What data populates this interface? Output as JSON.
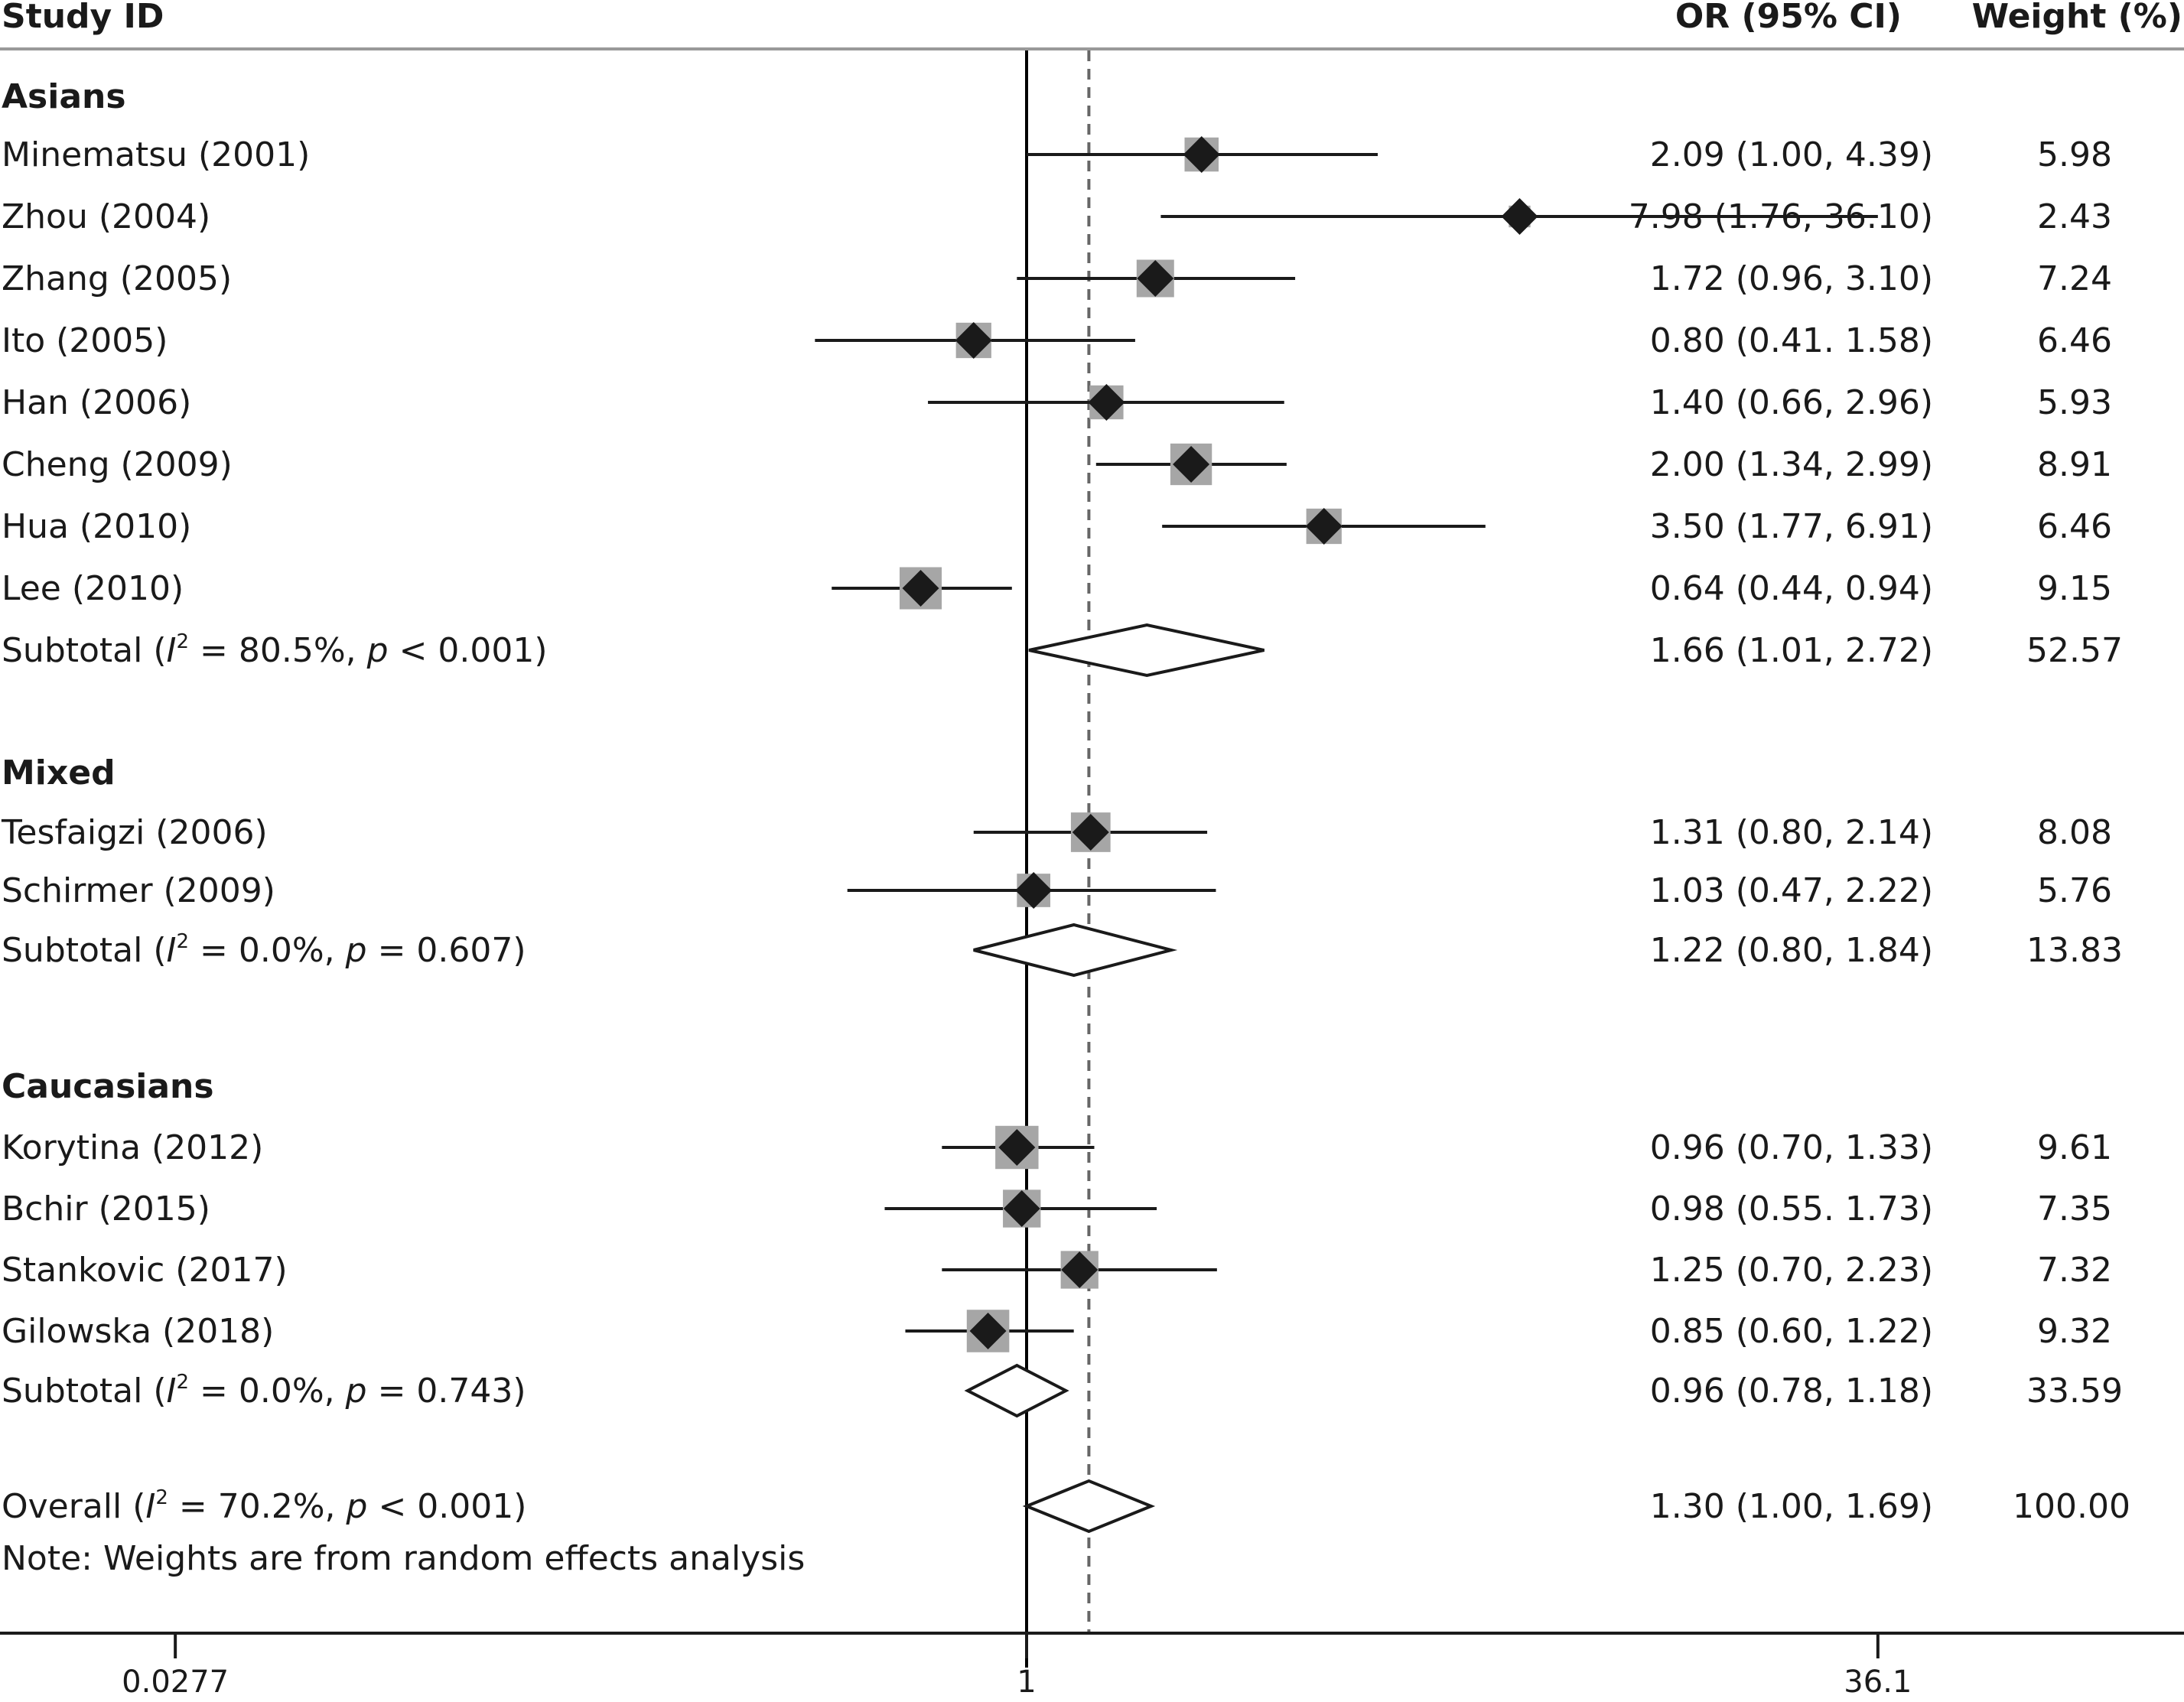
{
  "headers": {
    "study": "Study ID",
    "or": "OR (95% CI)",
    "weight": "Weight (%)"
  },
  "note": "Note: Weights are from random effects analysis",
  "colors": {
    "ink": "#1a1a1a",
    "box": "#a6a6a6",
    "null_line": "#000000",
    "overall_line": "#666666"
  },
  "chart_data": {
    "type": "forest",
    "scale": "log",
    "x_ticks": [
      {
        "value": 0.0277,
        "label": "0.0277"
      },
      {
        "value": 1,
        "label": "1"
      },
      {
        "value": 36.1,
        "label": "36.1"
      }
    ],
    "null_value": 1,
    "overall_estimate": 1.3,
    "groups": [
      {
        "name": "Asians",
        "studies": [
          {
            "label": "Minematsu (2001)",
            "or": 2.09,
            "lo": 1.0,
            "hi": 4.39,
            "ci_text": "2.09 (1.00, 4.39)",
            "weight": 5.98,
            "weight_text": "5.98"
          },
          {
            "label": "Zhou (2004)",
            "or": 7.98,
            "lo": 1.76,
            "hi": 36.1,
            "ci_text": "7.98 (1.76, 36.10)",
            "weight": 2.43,
            "weight_text": "2.43"
          },
          {
            "label": "Zhang (2005)",
            "or": 1.72,
            "lo": 0.96,
            "hi": 3.1,
            "ci_text": "1.72 (0.96, 3.10)",
            "weight": 7.24,
            "weight_text": "7.24"
          },
          {
            "label": "Ito (2005)",
            "or": 0.8,
            "lo": 0.41,
            "hi": 1.58,
            "ci_text": "0.80 (0.41. 1.58)",
            "weight": 6.46,
            "weight_text": "6.46"
          },
          {
            "label": "Han (2006)",
            "or": 1.4,
            "lo": 0.66,
            "hi": 2.96,
            "ci_text": "1.40 (0.66, 2.96)",
            "weight": 5.93,
            "weight_text": "5.93"
          },
          {
            "label": "Cheng (2009)",
            "or": 2.0,
            "lo": 1.34,
            "hi": 2.99,
            "ci_text": "2.00 (1.34, 2.99)",
            "weight": 8.91,
            "weight_text": "8.91"
          },
          {
            "label": "Hua (2010)",
            "or": 3.5,
            "lo": 1.77,
            "hi": 6.91,
            "ci_text": "3.50 (1.77, 6.91)",
            "weight": 6.46,
            "weight_text": "6.46"
          },
          {
            "label": "Lee (2010)",
            "or": 0.64,
            "lo": 0.44,
            "hi": 0.94,
            "ci_text": "0.64 (0.44, 0.94)",
            "weight": 9.15,
            "weight_text": "9.15"
          }
        ],
        "subtotal": {
          "label_pre": "Subtotal (",
          "i2_letter": "I",
          "i2_sup": "2",
          "label_mid": " = 80.5%, ",
          "p_letter": "p",
          "label_post": " < 0.001)",
          "or": 1.66,
          "lo": 1.01,
          "hi": 2.72,
          "ci_text": "1.66 (1.01, 2.72)",
          "weight_text": "52.57"
        }
      },
      {
        "name": "Mixed",
        "studies": [
          {
            "label": "Tesfaigzi (2006)",
            "or": 1.31,
            "lo": 0.8,
            "hi": 2.14,
            "ci_text": "1.31 (0.80, 2.14)",
            "weight": 8.08,
            "weight_text": "8.08"
          },
          {
            "label": "Schirmer (2009)",
            "or": 1.03,
            "lo": 0.47,
            "hi": 2.22,
            "ci_text": "1.03 (0.47, 2.22)",
            "weight": 5.76,
            "weight_text": "5.76"
          }
        ],
        "subtotal": {
          "label_pre": "Subtotal (",
          "i2_letter": "I",
          "i2_sup": "2",
          "label_mid": " = 0.0%, ",
          "p_letter": "p",
          "label_post": " = 0.607)",
          "or": 1.22,
          "lo": 0.8,
          "hi": 1.84,
          "ci_text": "1.22 (0.80, 1.84)",
          "weight_text": "13.83"
        }
      },
      {
        "name": "Caucasians",
        "studies": [
          {
            "label": "Korytina (2012)",
            "or": 0.96,
            "lo": 0.7,
            "hi": 1.33,
            "ci_text": "0.96 (0.70, 1.33)",
            "weight": 9.61,
            "weight_text": "9.61"
          },
          {
            "label": "Bchir (2015)",
            "or": 0.98,
            "lo": 0.55,
            "hi": 1.73,
            "ci_text": "0.98 (0.55. 1.73)",
            "weight": 7.35,
            "weight_text": "7.35"
          },
          {
            "label": "Stankovic (2017)",
            "or": 1.25,
            "lo": 0.7,
            "hi": 2.23,
            "ci_text": "1.25 (0.70, 2.23)",
            "weight": 7.32,
            "weight_text": "7.32"
          },
          {
            "label": "Gilowska (2018)",
            "or": 0.85,
            "lo": 0.6,
            "hi": 1.22,
            "ci_text": "0.85 (0.60, 1.22)",
            "weight": 9.32,
            "weight_text": "9.32"
          }
        ],
        "subtotal": {
          "label_pre": "Subtotal (",
          "i2_letter": "I",
          "i2_sup": "2",
          "label_mid": " = 0.0%, ",
          "p_letter": "p",
          "label_post": " = 0.743)",
          "or": 0.96,
          "lo": 0.78,
          "hi": 1.18,
          "ci_text": "0.96 (0.78, 1.18)",
          "weight_text": "33.59"
        }
      }
    ],
    "overall": {
      "label_pre": "Overall (",
      "i2_letter": "I",
      "i2_sup": "2",
      "label_mid": " = 70.2%, ",
      "p_letter": "p",
      "label_post": " < 0.001)",
      "or": 1.3,
      "lo": 1.0,
      "hi": 1.69,
      "ci_text": "1.30 (1.00, 1.69)",
      "weight_text": "100.00"
    }
  }
}
